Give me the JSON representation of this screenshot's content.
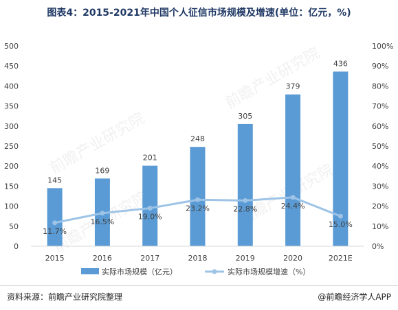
{
  "title": "图表4：2015-2021年中国个人征信市场规模及增速(单位：亿元，%)",
  "source": "资料来源：前瞻产业研究院整理",
  "credit": "@前瞻经济学人APP",
  "watermark": "前瞻产业研究院",
  "colors": {
    "bar": "#5b9bd5",
    "line": "#9dc3e6",
    "title": "#1f3864"
  },
  "chart_data": {
    "type": "bar",
    "categories": [
      "2015",
      "2016",
      "2017",
      "2018",
      "2019",
      "2020",
      "2021E"
    ],
    "series": [
      {
        "name": "实际市场规模（亿元）",
        "type": "bar",
        "axis": "left",
        "values": [
          145,
          169,
          201,
          248,
          305,
          379,
          436
        ],
        "labels": [
          "145",
          "169",
          "201",
          "248",
          "305",
          "379",
          "436"
        ]
      },
      {
        "name": "实际市场规模增速（%）",
        "type": "line",
        "axis": "right",
        "values": [
          11.7,
          16.5,
          19.0,
          23.2,
          22.8,
          24.4,
          15.0
        ],
        "labels": [
          "11.7%",
          "16.5%",
          "19.0%",
          "23.2%",
          "22.8%",
          "24.4%",
          "15.0%"
        ]
      }
    ],
    "y_left": {
      "min": 0,
      "max": 500,
      "ticks": [
        "0",
        "50",
        "100",
        "150",
        "200",
        "250",
        "300",
        "350",
        "400",
        "450",
        "500"
      ]
    },
    "y_right": {
      "min": 0,
      "max": 100,
      "ticks": [
        "0%",
        "10%",
        "20%",
        "30%",
        "40%",
        "50%",
        "60%",
        "70%",
        "80%",
        "90%",
        "100%"
      ]
    },
    "grid": false,
    "legend": "bottom"
  }
}
